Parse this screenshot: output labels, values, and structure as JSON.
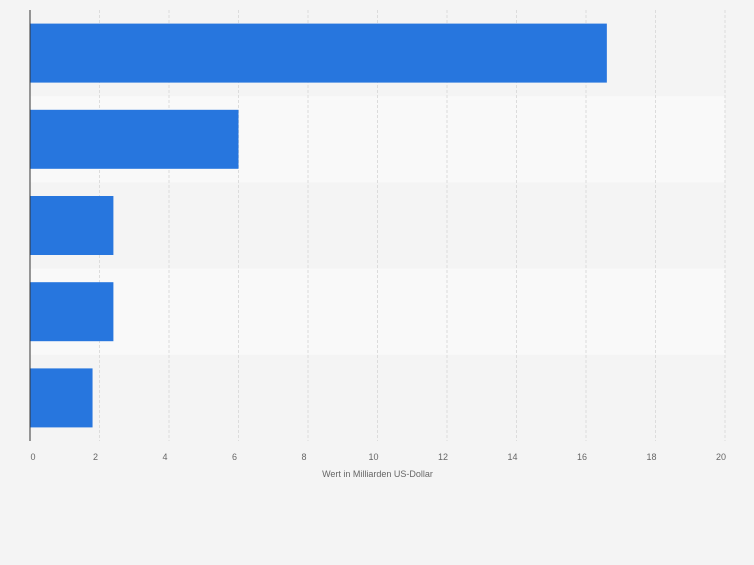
{
  "chart_data": {
    "type": "bar",
    "orientation": "horizontal",
    "categories": [
      "",
      "",
      "",
      "",
      ""
    ],
    "values": [
      16.6,
      6.0,
      2.4,
      2.4,
      1.8
    ],
    "xlabel": "Wert in Milliarden US-Dollar",
    "ylabel": "",
    "xlim": [
      0,
      20
    ],
    "x_ticks": [
      0,
      2,
      4,
      6,
      8,
      10,
      12,
      14,
      16,
      18,
      20
    ],
    "grid": true,
    "legend": "none",
    "colors": {
      "bar": "#2776de",
      "background": "#f4f4f4",
      "band_alt": "#f9f9f9",
      "grid": "#dcdcdc",
      "axis": "#333333",
      "text": "#666666"
    }
  }
}
